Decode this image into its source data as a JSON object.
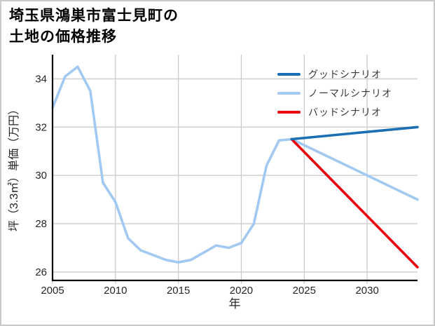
{
  "title": {
    "line1": "埼玉県鴻巣市富士見町の",
    "line2": "土地の価格推移"
  },
  "chart_data": {
    "type": "line",
    "title": "埼玉県鴻巣市富士見町の土地の価格推移",
    "xlabel": "年",
    "ylabel": "坪（3.3㎡）単価（万円）",
    "xlim": [
      2005,
      2034
    ],
    "ylim": [
      25.65,
      35.0
    ],
    "xticks": [
      2005,
      2010,
      2015,
      2020,
      2025,
      2030
    ],
    "yticks": [
      26,
      28,
      30,
      32,
      34
    ],
    "grid": true,
    "legend_position": "upper right",
    "grid_color": "#cccccc",
    "axis_color": "#000000",
    "tick_label_color": "#262626",
    "series": [
      {
        "id": "good",
        "name": "グッドシナリオ",
        "color": "#1a6fb5",
        "x": [
          2024,
          2034
        ],
        "y": [
          31.5,
          32.0
        ]
      },
      {
        "id": "normal",
        "name": "ノーマルシナリオ",
        "color": "#a1c9f1",
        "x": [
          2005,
          2006,
          2007,
          2008,
          2009,
          2010,
          2011,
          2012,
          2013,
          2014,
          2015,
          2016,
          2017,
          2018,
          2019,
          2020,
          2021,
          2022,
          2023,
          2024,
          2034
        ],
        "y": [
          32.8,
          34.1,
          34.5,
          33.5,
          29.7,
          28.9,
          27.4,
          26.9,
          26.7,
          26.5,
          26.4,
          26.5,
          26.8,
          27.1,
          27.0,
          27.2,
          28.0,
          30.4,
          31.45,
          31.5,
          29.0
        ]
      },
      {
        "id": "bad",
        "name": "バッドシナリオ",
        "color": "#e8000d",
        "x": [
          2024,
          2034
        ],
        "y": [
          31.5,
          26.2
        ]
      }
    ]
  }
}
